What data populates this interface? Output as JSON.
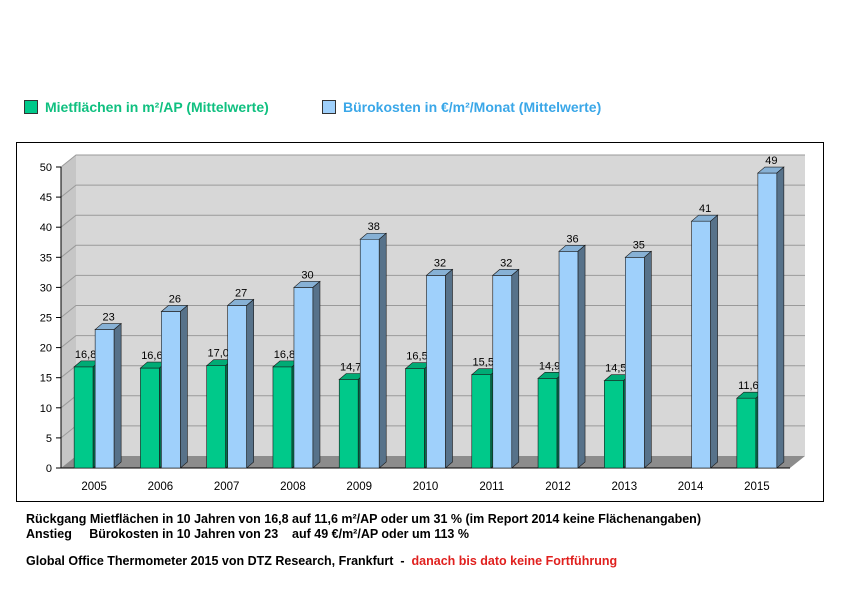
{
  "colors": {
    "series1": "#00c98a",
    "series2": "#9fd0fb",
    "legend1_text": "#10c080",
    "legend2_text": "#3aa7e8",
    "plot_back": "#d7d7d7",
    "floor": "#8c8c8c",
    "grid": "#9a9a9a",
    "accent_red": "#e0201e"
  },
  "chart_data": {
    "type": "bar",
    "style": "3d-clustered",
    "categories": [
      "2005",
      "2006",
      "2007",
      "2008",
      "2009",
      "2010",
      "2011",
      "2012",
      "2013",
      "2014",
      "2015"
    ],
    "series": [
      {
        "name": "Mietflächen in m²/AP (Mittelwerte)",
        "values": [
          16.8,
          16.6,
          17.0,
          16.8,
          14.7,
          16.5,
          15.5,
          14.9,
          14.5,
          null,
          11.6
        ],
        "labels": [
          "16,8",
          "16,6",
          "17,0",
          "16,8",
          "14,7",
          "16,5",
          "15,5",
          "14,9",
          "14,5",
          "",
          "11,6"
        ]
      },
      {
        "name": "Bürokosten in €/m²/Monat (Mittelwerte)",
        "values": [
          23,
          26,
          27,
          30,
          38,
          32,
          32,
          36,
          35,
          41,
          49
        ],
        "labels": [
          "23",
          "26",
          "27",
          "30",
          "38",
          "32",
          "32",
          "36",
          "35",
          "41",
          "49"
        ]
      }
    ],
    "ylim": [
      0,
      50
    ],
    "yticks": [
      0,
      5,
      10,
      15,
      20,
      25,
      30,
      35,
      40,
      45,
      50
    ],
    "grid": true,
    "legend_position": "top"
  },
  "notes": {
    "line1": "Rückgang Mietflächen in 10 Jahren von 16,8 auf 11,6 m²/AP oder um 31 % (im Report 2014 keine Flächenangaben)",
    "line2_a": "Anstieg     Bürokosten in 10 Jahren von 23    auf 49 €/m²/AP oder um 113 %",
    "source_black": "Global Office Thermometer 2015 von DTZ Research, Frankfurt  -  ",
    "source_red": "danach bis dato keine Fortführung"
  }
}
